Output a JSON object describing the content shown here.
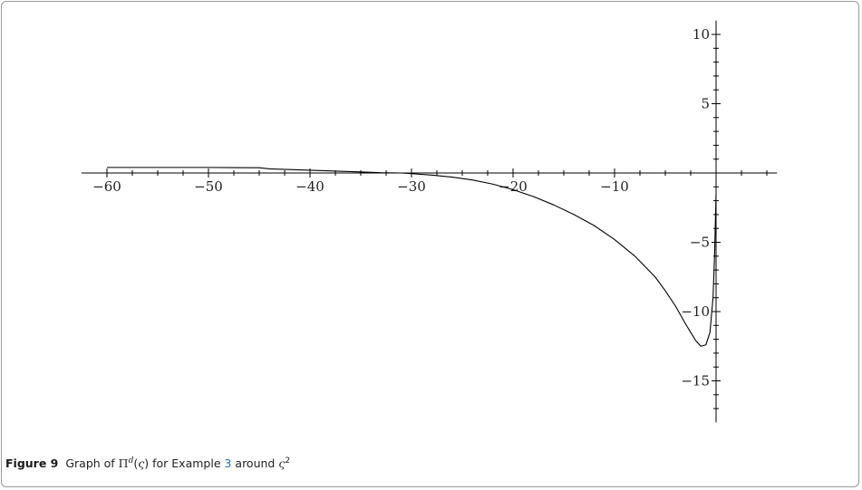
{
  "chart_data": {
    "type": "line",
    "xlim": [
      -62.5,
      6
    ],
    "ylim": [
      -18,
      11
    ],
    "x_ticks_labeled": [
      -60,
      -50,
      -40,
      -30,
      -20,
      -10
    ],
    "y_ticks_labeled": [
      10,
      5,
      -5,
      -10,
      -15
    ],
    "x_tick_labels": [
      "−60",
      "−50",
      "−40",
      "−30",
      "−20",
      "−10"
    ],
    "y_tick_labels": [
      "10",
      "5",
      "−5",
      "−10",
      "−15"
    ],
    "series": [
      {
        "x": [
          -60,
          -55,
          -50,
          -45,
          -44,
          -40,
          -36,
          -33,
          -31,
          -30,
          -28,
          -26,
          -24,
          -22,
          -20,
          -18,
          -16,
          -14,
          -12,
          -10,
          -8,
          -6,
          -5,
          -4,
          -3,
          -2.5,
          -2,
          -1.5,
          -1,
          -0.6,
          -0.3,
          -0.15,
          0
        ],
        "y": [
          0.4,
          0.4,
          0.4,
          0.38,
          0.3,
          0.2,
          0.1,
          0.02,
          0,
          -0.05,
          -0.15,
          -0.3,
          -0.5,
          -0.8,
          -1.2,
          -1.7,
          -2.3,
          -3.0,
          -3.8,
          -4.8,
          -6.0,
          -7.5,
          -8.5,
          -9.6,
          -10.9,
          -11.5,
          -12.1,
          -12.5,
          -12.4,
          -11.5,
          -9.0,
          -6.0,
          -1.5
        ]
      }
    ]
  },
  "caption": {
    "figure_label": "Figure 9",
    "text_before_math": "Graph of ",
    "pi": "Π",
    "pi_sup": "d",
    "var": "ς",
    "text_mid": " for Example ",
    "ref": "3",
    "text_after": " around ",
    "var2": "ς",
    "var2_sup": "2"
  }
}
